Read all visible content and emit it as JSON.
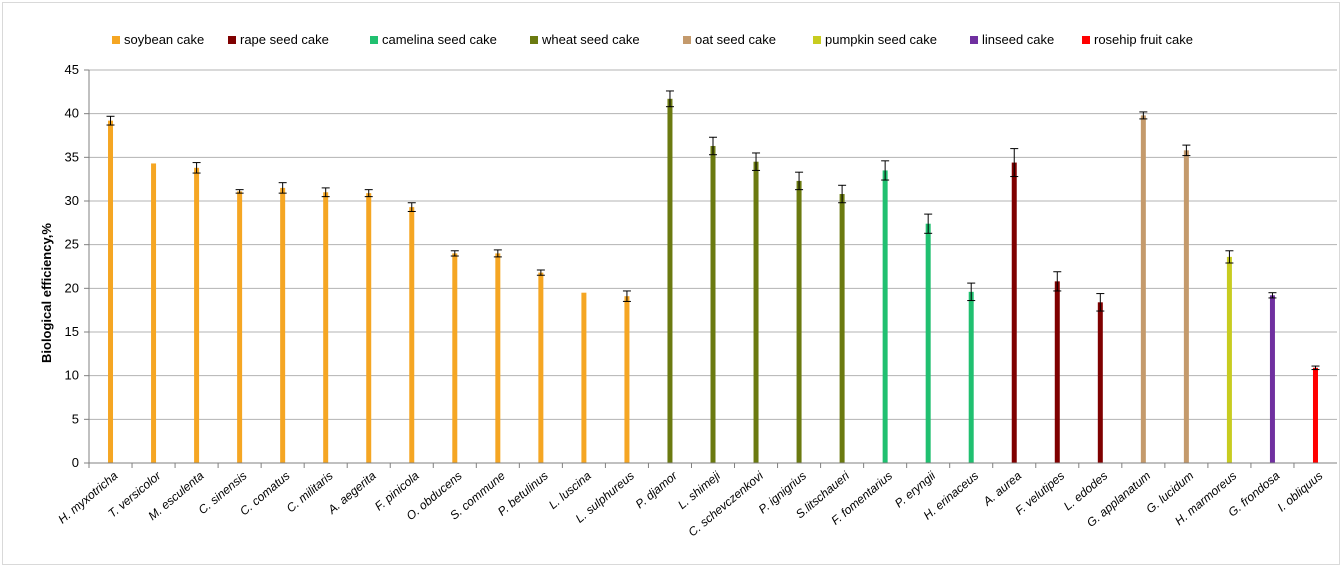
{
  "chart_data": {
    "type": "bar",
    "ylabel": "Biological efficiency,%",
    "xlabel": "",
    "ylim": [
      0,
      45
    ],
    "yticks": [
      "0",
      "5",
      "10",
      "15",
      "20",
      "25",
      "30",
      "35",
      "40",
      "45"
    ],
    "grid": true,
    "legend_position": "top",
    "legend": [
      {
        "name": "soybean cake",
        "color": "#f5a623"
      },
      {
        "name": "rape seed cake",
        "color": "#7f0000"
      },
      {
        "name": "camelina seed cake",
        "color": "#20c070"
      },
      {
        "name": "wheat seed cake",
        "color": "#6b7a10"
      },
      {
        "name": "oat seed cake",
        "color": "#c49a6c"
      },
      {
        "name": "pumpkin seed cake",
        "color": "#c8cc20"
      },
      {
        "name": "linseed cake",
        "color": "#7030a0"
      },
      {
        "name": "rosehip fruit cake",
        "color": "#ff0000"
      }
    ],
    "bars": [
      {
        "category": "H. myxotricha",
        "value": 39.2,
        "error": 0.5,
        "series": "soybean cake"
      },
      {
        "category": "T. versicolor",
        "value": 34.3,
        "error": 0,
        "series": "soybean cake"
      },
      {
        "category": "M. esculenta",
        "value": 33.8,
        "error": 0.6,
        "series": "soybean cake"
      },
      {
        "category": "C. sinensis",
        "value": 31.1,
        "error": 0.2,
        "series": "soybean cake"
      },
      {
        "category": "C. comatus",
        "value": 31.5,
        "error": 0.6,
        "series": "soybean cake"
      },
      {
        "category": "C. militaris",
        "value": 31.0,
        "error": 0.5,
        "series": "soybean cake"
      },
      {
        "category": "A. aegerita",
        "value": 30.9,
        "error": 0.4,
        "series": "soybean cake"
      },
      {
        "category": "F. pinicola",
        "value": 29.3,
        "error": 0.5,
        "series": "soybean cake"
      },
      {
        "category": "O. obducens",
        "value": 24.0,
        "error": 0.3,
        "series": "soybean cake"
      },
      {
        "category": "S. commune",
        "value": 24.0,
        "error": 0.4,
        "series": "soybean cake"
      },
      {
        "category": "P. betulinus",
        "value": 21.8,
        "error": 0.3,
        "series": "soybean cake"
      },
      {
        "category": "L. luscina",
        "value": 19.5,
        "error": 0,
        "series": "soybean cake"
      },
      {
        "category": "L. sulphureus",
        "value": 19.1,
        "error": 0.6,
        "series": "soybean cake"
      },
      {
        "category": "P. djamor",
        "value": 41.7,
        "error": 0.9,
        "series": "wheat seed cake"
      },
      {
        "category": "L. shimeji",
        "value": 36.3,
        "error": 1.0,
        "series": "wheat seed cake"
      },
      {
        "category": "C. schevczenkovi",
        "value": 34.5,
        "error": 1.0,
        "series": "wheat seed cake"
      },
      {
        "category": "P. ignigrius",
        "value": 32.3,
        "error": 1.0,
        "series": "wheat seed cake"
      },
      {
        "category": "S.litschaueri",
        "value": 30.8,
        "error": 1.0,
        "series": "wheat seed cake"
      },
      {
        "category": "F. fomentarius",
        "value": 33.5,
        "error": 1.1,
        "series": "camelina seed cake"
      },
      {
        "category": "P. eryngii",
        "value": 27.4,
        "error": 1.1,
        "series": "camelina seed cake"
      },
      {
        "category": "H. erinaceus",
        "value": 19.6,
        "error": 1.0,
        "series": "camelina seed cake"
      },
      {
        "category": "A. aurea",
        "value": 34.4,
        "error": 1.6,
        "series": "rape seed cake"
      },
      {
        "category": "F. velutipes",
        "value": 20.8,
        "error": 1.1,
        "series": "rape seed cake"
      },
      {
        "category": "L. edodes",
        "value": 18.4,
        "error": 1.0,
        "series": "rape seed cake"
      },
      {
        "category": "G. applanatum",
        "value": 39.8,
        "error": 0.4,
        "series": "oat seed cake"
      },
      {
        "category": "G. lucidum",
        "value": 35.8,
        "error": 0.6,
        "series": "oat seed cake"
      },
      {
        "category": "H. marmoreus",
        "value": 23.6,
        "error": 0.7,
        "series": "pumpkin seed cake"
      },
      {
        "category": "G. frondosa",
        "value": 19.2,
        "error": 0.3,
        "series": "linseed cake"
      },
      {
        "category": "I. obliquus",
        "value": 10.9,
        "error": 0.2,
        "series": "rosehip fruit cake"
      }
    ]
  }
}
